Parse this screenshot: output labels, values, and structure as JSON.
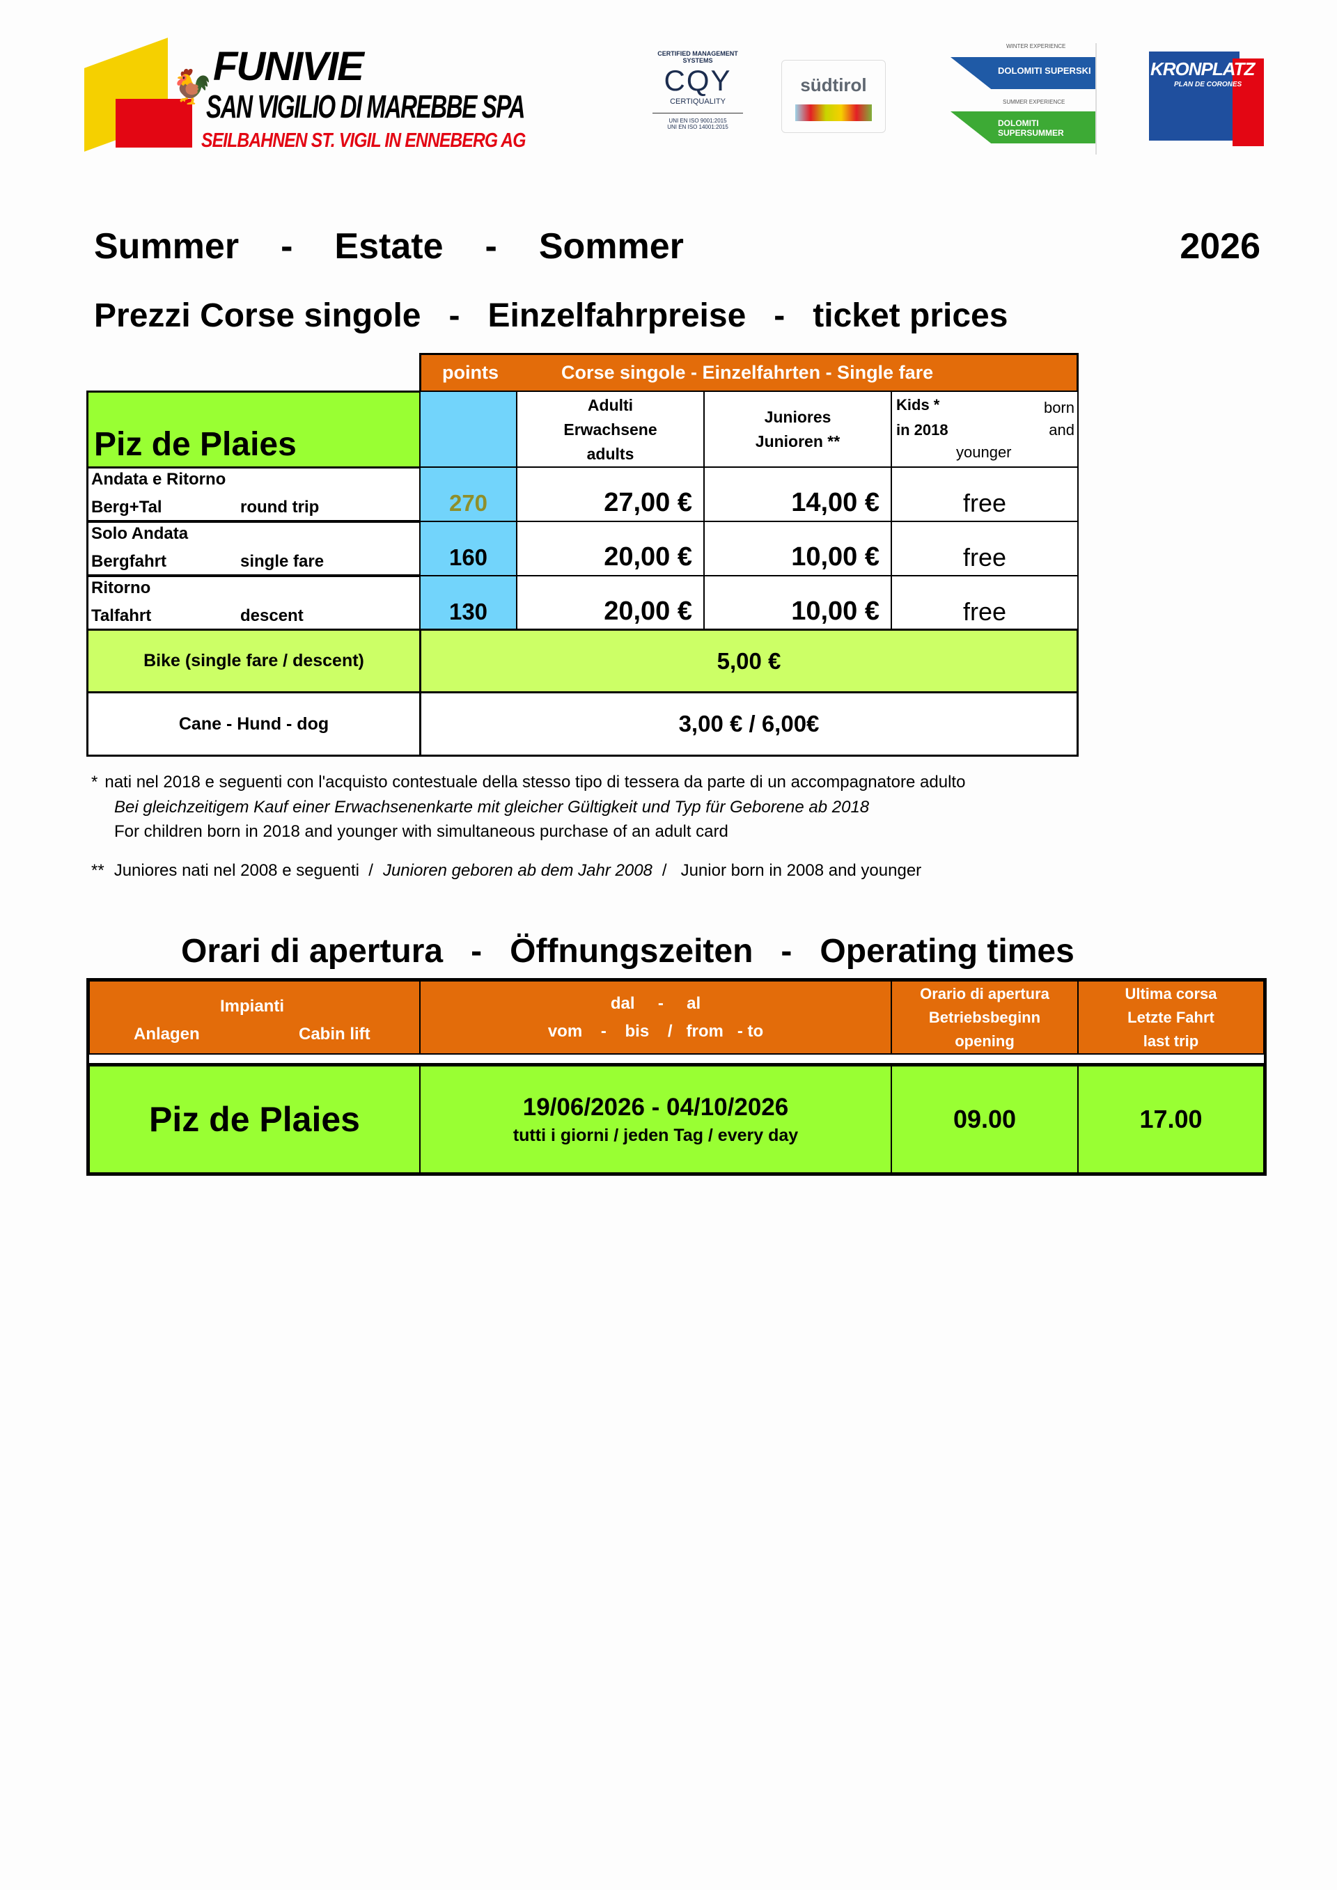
{
  "logos": {
    "funivie": {
      "line1": "FUNIVIE",
      "line2": "SAN VIGILIO DI MAREBBE SPA",
      "line3": "SEILBAHNEN ST. VIGIL IN ENNEBERG AG"
    },
    "certiquality": {
      "top": "CERTIFIED MANAGEMENT SYSTEMS",
      "mark": "CQY",
      "name": "CERTIQUALITY",
      "iso1": "UNI EN ISO 9001:2015",
      "iso2": "UNI EN ISO 14001:2015"
    },
    "suedtirol": "südtirol",
    "dolomiti": {
      "winter": "WINTER EXPERIENCE",
      "superski": "DOLOMITI SUPERSKI",
      "summer": "SUMMER EXPERIENCE",
      "supersummer": "DOLOMITI SUPERSUMMER"
    },
    "kronplatz": {
      "name": "KRONPLATZ",
      "sub": "PLAN DE CORONES"
    }
  },
  "title": {
    "summer": "Summer",
    "dash1": "-",
    "estate": "Estate",
    "dash2": "-",
    "sommer": "Sommer",
    "year": "2026"
  },
  "subtitle": {
    "it": "Prezzi Corse singole",
    "dash1": "-",
    "de": "Einzelfahrpreise",
    "dash2": "-",
    "en": "ticket prices"
  },
  "prices": {
    "header_points": "points",
    "header_fare": "Corse singole  -  Einzelfahrten  -  Single fare",
    "lift_name": "Piz de Plaies",
    "col_adults": [
      "Adulti",
      "Erwachsene",
      "adults"
    ],
    "col_juniors": [
      "Juniores",
      "Junioren   **"
    ],
    "col_kids": {
      "a": "Kids  *",
      "b": "born",
      "c": "in 2018",
      "d": "and",
      "e": "younger"
    },
    "rows": [
      {
        "label1": "Andata e Ritorno",
        "label2a": "Berg+Tal",
        "label2b": "round trip",
        "points": "270",
        "adults": "27,00 €",
        "juniors": "14,00 €",
        "kids": "free"
      },
      {
        "label1": "Solo Andata",
        "label2a": "Bergfahrt",
        "label2b": "single fare",
        "points": "160",
        "adults": "20,00 €",
        "juniors": "10,00 €",
        "kids": "free"
      },
      {
        "label1": "Ritorno",
        "label2a": "Talfahrt",
        "label2b": "descent",
        "points": "130",
        "adults": "20,00 €",
        "juniors": "10,00 €",
        "kids": "free"
      }
    ],
    "bike_label": "Bike (single fare / descent)",
    "bike_price": "5,00 €",
    "dog_label": "Cane - Hund - dog",
    "dog_price": "3,00 € / 6,00€"
  },
  "footnotes": {
    "f1_star": "*",
    "f1_it": "nati nel 2018 e seguenti con l'acquisto contestuale della stesso tipo di tessera da parte di un accompagnatore adulto",
    "f1_de": "Bei gleichzeitigem Kauf einer Erwachsenenkarte mit gleicher Gültigkeit und Typ für Geborene ab 2018",
    "f1_en": "For children born in 2018 and younger with simultaneous purchase of an adult card",
    "f2_star": "**",
    "f2_it": "Juniores nati nel 2008 e seguenti  /",
    "f2_de": "Junioren geboren ab dem Jahr 2008",
    "f2_en": "/   Junior born in 2008 and younger"
  },
  "hours_title": {
    "it": "Orari di apertura",
    "dash1": "-",
    "de": "Öffnungszeiten",
    "dash2": "-",
    "en": "Operating times"
  },
  "hours": {
    "h_impianti": "Impianti",
    "h_anlagen": "Anlagen",
    "h_cabin": "Cabin lift",
    "h_dates1": "dal     -     al",
    "h_dates2": "vom    -    bis    /   from   - to",
    "h_open": [
      "Orario di apertura",
      "Betriebsbeginn",
      "opening"
    ],
    "h_last": [
      "Ultima corsa",
      "Letzte  Fahrt",
      "last trip"
    ],
    "lift": "Piz de Plaies",
    "dates": "19/06/2026 - 04/10/2026",
    "days": "tutti i giorni / jeden Tag / every day",
    "opening": "09.00",
    "last": "17.00"
  },
  "colors": {
    "orange": "#e36c0a",
    "green": "#99ff33",
    "lime": "#ccff66",
    "blue": "#72d4fb"
  }
}
